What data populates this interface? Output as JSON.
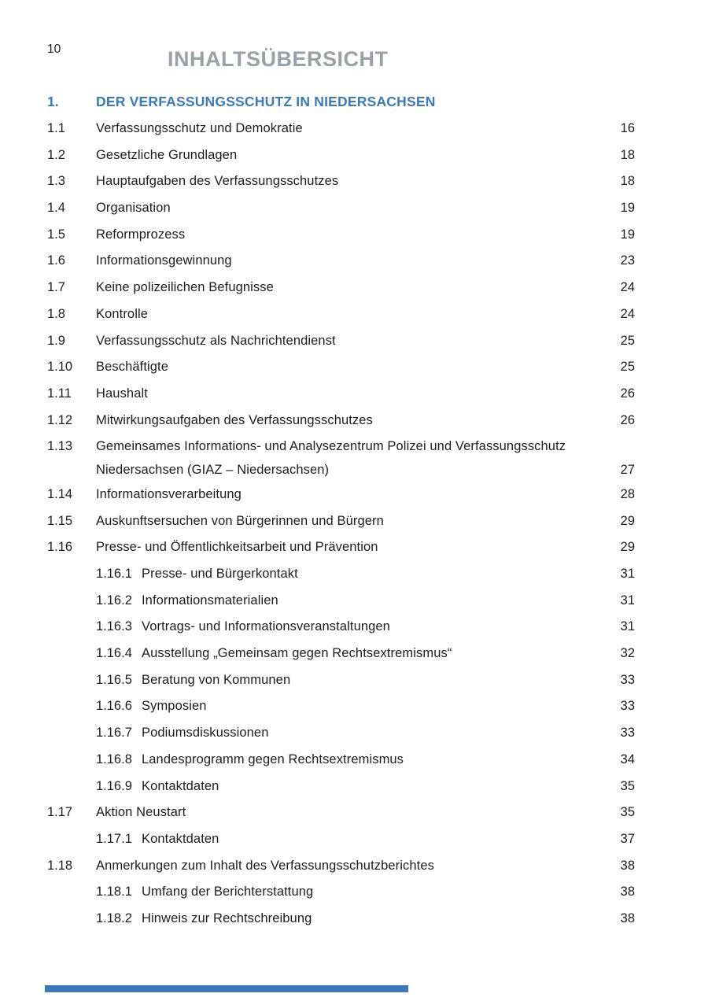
{
  "page": {
    "number": "10",
    "title": "INHALTSÜBERSICHT"
  },
  "section": {
    "number": "1.",
    "title": "DER VERFASSUNGSSCHUTZ IN NIEDERSACHSEN"
  },
  "colors": {
    "accent_blue": "#3b79bd",
    "title_gray": "#96a1a8",
    "text": "#1d1d1b"
  },
  "toc": {
    "entries": [
      {
        "num": "1.1",
        "label": "Verfassungsschutz und Demokratie",
        "page": "16",
        "level": 1,
        "cont": false
      },
      {
        "num": "1.2",
        "label": "Gesetzliche Grundlagen",
        "page": "18",
        "level": 1,
        "cont": false
      },
      {
        "num": "1.3",
        "label": "Hauptaufgaben des Verfassungsschutzes",
        "page": "18",
        "level": 1,
        "cont": false
      },
      {
        "num": "1.4",
        "label": "Organisation",
        "page": "19",
        "level": 1,
        "cont": false
      },
      {
        "num": "1.5",
        "label": "Reformprozess",
        "page": "19",
        "level": 1,
        "cont": false
      },
      {
        "num": "1.6",
        "label": "Informationsgewinnung",
        "page": "23",
        "level": 1,
        "cont": false
      },
      {
        "num": "1.7",
        "label": "Keine polizeilichen Befugnisse",
        "page": "24",
        "level": 1,
        "cont": false
      },
      {
        "num": "1.8",
        "label": "Kontrolle",
        "page": "24",
        "level": 1,
        "cont": false
      },
      {
        "num": "1.9",
        "label": "Verfassungsschutz als Nachrichtendienst",
        "page": "25",
        "level": 1,
        "cont": false
      },
      {
        "num": "1.10",
        "label": "Beschäftigte",
        "page": "25",
        "level": 1,
        "cont": false
      },
      {
        "num": "1.11",
        "label": "Haushalt",
        "page": "26",
        "level": 1,
        "cont": false
      },
      {
        "num": "1.12",
        "label": "Mitwirkungsaufgaben des Verfassungsschutzes",
        "page": "26",
        "level": 1,
        "cont": false
      },
      {
        "num": "1.13",
        "label": "Gemeinsames Informations- und Analysezentrum Polizei und Verfassungsschutz",
        "page": "",
        "level": 1,
        "cont": false
      },
      {
        "num": "",
        "label": "Niedersachsen (GIAZ – Niedersachsen)",
        "page": "27",
        "level": 1,
        "cont": true
      },
      {
        "num": "1.14",
        "label": "Informationsverarbeitung",
        "page": "28",
        "level": 1,
        "cont": false
      },
      {
        "num": "1.15",
        "label": "Auskunftsersuchen von Bürgerinnen und Bürgern",
        "page": "29",
        "level": 1,
        "cont": false
      },
      {
        "num": "1.16",
        "label": "Presse- und Öffentlichkeitsarbeit und Prävention",
        "page": "29",
        "level": 1,
        "cont": false
      },
      {
        "num": "1.16.1",
        "label": "Presse- und Bürgerkontakt",
        "page": "31",
        "level": 2,
        "cont": false
      },
      {
        "num": "1.16.2",
        "label": "Informationsmaterialien",
        "page": "31",
        "level": 2,
        "cont": false
      },
      {
        "num": "1.16.3",
        "label": "Vortrags- und Informationsveranstaltungen",
        "page": "31",
        "level": 2,
        "cont": false
      },
      {
        "num": "1.16.4",
        "label": "Ausstellung „Gemeinsam gegen Rechtsextremismus“",
        "page": "32",
        "level": 2,
        "cont": false
      },
      {
        "num": "1.16.5",
        "label": "Beratung von Kommunen",
        "page": "33",
        "level": 2,
        "cont": false
      },
      {
        "num": "1.16.6",
        "label": "Symposien",
        "page": "33",
        "level": 2,
        "cont": false
      },
      {
        "num": "1.16.7",
        "label": "Podiumsdiskussionen",
        "page": "33",
        "level": 2,
        "cont": false
      },
      {
        "num": "1.16.8",
        "label": "Landesprogramm gegen Rechtsextremismus",
        "page": "34",
        "level": 2,
        "cont": false
      },
      {
        "num": "1.16.9",
        "label": "Kontaktdaten",
        "page": "35",
        "level": 2,
        "cont": false
      },
      {
        "num": "1.17",
        "label": "Aktion Neustart",
        "page": "35",
        "level": 1,
        "cont": false
      },
      {
        "num": "1.17.1",
        "label": "Kontaktdaten",
        "page": "37",
        "level": 2,
        "cont": false
      },
      {
        "num": "1.18",
        "label": "Anmerkungen zum Inhalt des Verfassungsschutzberichtes",
        "page": "38",
        "level": 1,
        "cont": false
      },
      {
        "num": "1.18.1",
        "label": "Umfang der Berichterstattung",
        "page": "38",
        "level": 2,
        "cont": false
      },
      {
        "num": "1.18.2",
        "label": "Hinweis zur Rechtschreibung",
        "page": "38",
        "level": 2,
        "cont": false
      }
    ]
  }
}
